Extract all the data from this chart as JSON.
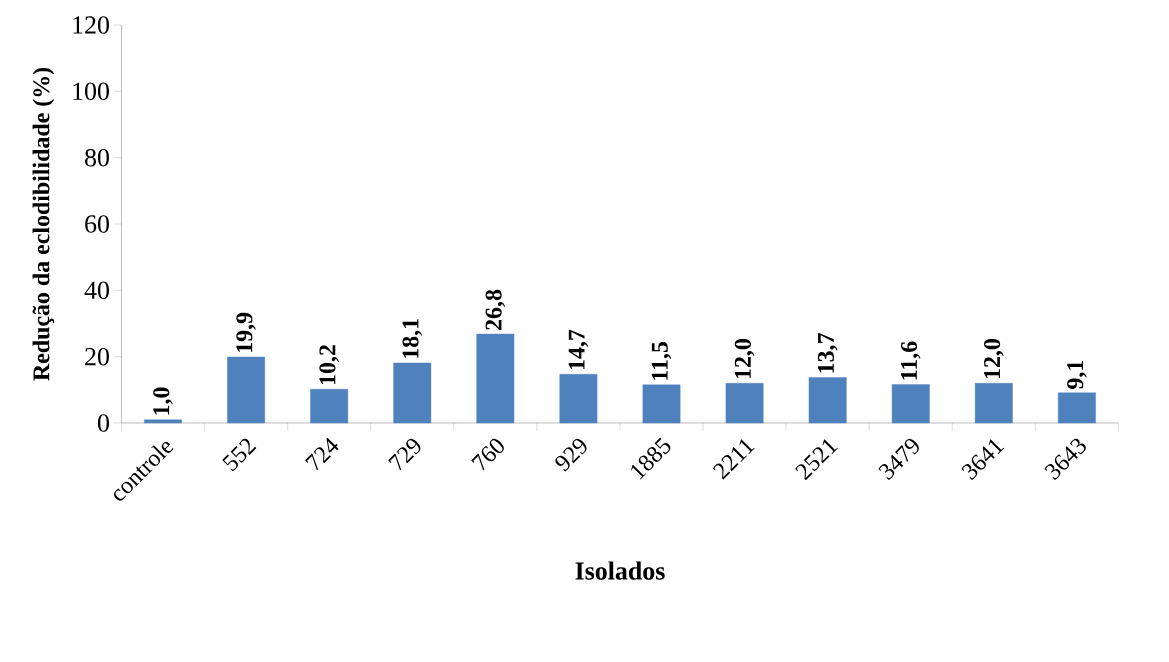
{
  "chart_data": {
    "type": "bar",
    "xlabel": "Isolados",
    "ylabel": "Redução da eclodibilidade (%)",
    "categories": [
      "controle",
      "552",
      "724",
      "729",
      "760",
      "929",
      "1885",
      "2211",
      "2521",
      "3479",
      "3641",
      "3643"
    ],
    "values": [
      1.0,
      19.9,
      10.2,
      18.1,
      26.8,
      14.7,
      11.5,
      12.0,
      13.7,
      11.6,
      12.0,
      9.1
    ],
    "value_labels": [
      "1,0",
      "19,9",
      "10,2",
      "18,1",
      "26,8",
      "14,7",
      "11,5",
      "12,0",
      "13,7",
      "11,6",
      "12,0",
      "9,1"
    ],
    "color": "#4f81bd",
    "ylim": [
      0,
      120
    ],
    "yticks": [
      0,
      20,
      40,
      60,
      80,
      100,
      120
    ]
  }
}
